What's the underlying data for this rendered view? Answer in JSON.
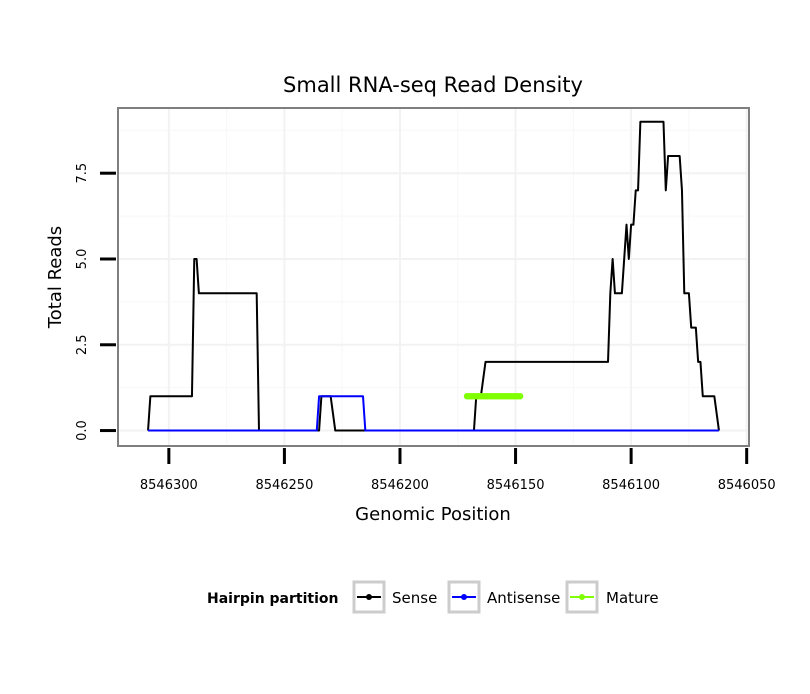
{
  "chart_data": {
    "type": "line",
    "title": "Small RNA-seq Read Density",
    "xlabel": "Genomic Position",
    "ylabel": "Total Reads",
    "xlim": [
      8546322,
      8546049
    ],
    "ylim": [
      -0.45,
      9.4
    ],
    "x_reversed": true,
    "xticks": [
      8546300,
      8546250,
      8546200,
      8546150,
      8546100,
      8546050
    ],
    "xtick_labels": [
      "8546300",
      "8546250",
      "8546200",
      "8546150",
      "8546100",
      "8546050"
    ],
    "yticks": [
      0,
      2.5,
      5,
      7.5
    ],
    "ytick_labels": [
      "0.0",
      "2.5",
      "5.0",
      "7.5"
    ],
    "legend": {
      "title": "Hairpin partition",
      "position": "bottom",
      "entries": [
        "Sense",
        "Antisense",
        "Mature"
      ]
    },
    "series": [
      {
        "name": "Sense",
        "color": "#000000",
        "points": [
          [
            8546309,
            0
          ],
          [
            8546308,
            1
          ],
          [
            8546290,
            1
          ],
          [
            8546289,
            5
          ],
          [
            8546288,
            5
          ],
          [
            8546287,
            4
          ],
          [
            8546262,
            4
          ],
          [
            8546261,
            0
          ],
          [
            8546235,
            0
          ],
          [
            8546234,
            1
          ],
          [
            8546230,
            1
          ],
          [
            8546228,
            0
          ],
          [
            8546168,
            0
          ],
          [
            8546167,
            1
          ],
          [
            8546165,
            1
          ],
          [
            8546163,
            2
          ],
          [
            8546145,
            2
          ],
          [
            8546144,
            2
          ],
          [
            8546136,
            2
          ],
          [
            8546134,
            2
          ],
          [
            8546133,
            2
          ],
          [
            8546132,
            2
          ],
          [
            8546131,
            2
          ],
          [
            8546130,
            2
          ],
          [
            8546128,
            2
          ],
          [
            8546121,
            2
          ],
          [
            8546120,
            2
          ],
          [
            8546110,
            2
          ],
          [
            8546109,
            4
          ],
          [
            8546108,
            5
          ],
          [
            8546107,
            4
          ],
          [
            8546104,
            4
          ],
          [
            8546103,
            5
          ],
          [
            8546102,
            6
          ],
          [
            8546101,
            5
          ],
          [
            8546100,
            6
          ],
          [
            8546099,
            6
          ],
          [
            8546098,
            7
          ],
          [
            8546097,
            7
          ],
          [
            8546096,
            9
          ],
          [
            8546086,
            9
          ],
          [
            8546085,
            7
          ],
          [
            8546084,
            8
          ],
          [
            8546079,
            8
          ],
          [
            8546078,
            7
          ],
          [
            8546077,
            4
          ],
          [
            8546075,
            4
          ],
          [
            8546074,
            3
          ],
          [
            8546072,
            3
          ],
          [
            8546071,
            2
          ],
          [
            8546070,
            2
          ],
          [
            8546069,
            1
          ],
          [
            8546064,
            1
          ],
          [
            8546062,
            0
          ]
        ]
      },
      {
        "name": "Antisense",
        "color": "#0000ff",
        "points": [
          [
            8546309,
            0
          ],
          [
            8546236,
            0
          ],
          [
            8546235,
            1
          ],
          [
            8546216,
            1
          ],
          [
            8546215,
            0
          ],
          [
            8546152,
            0
          ],
          [
            8546062,
            0
          ]
        ]
      },
      {
        "name": "Mature",
        "color": "#80ff00",
        "points": [
          [
            8546171,
            1
          ],
          [
            8546170,
            1
          ],
          [
            8546169,
            1
          ],
          [
            8546168,
            1
          ],
          [
            8546167,
            1
          ],
          [
            8546166,
            1
          ],
          [
            8546165,
            1
          ],
          [
            8546164,
            1
          ],
          [
            8546163,
            1
          ],
          [
            8546162,
            1
          ],
          [
            8546161,
            1
          ],
          [
            8546160,
            1
          ],
          [
            8546159,
            1
          ],
          [
            8546158,
            1
          ],
          [
            8546157,
            1
          ],
          [
            8546156,
            1
          ],
          [
            8546155,
            1
          ],
          [
            8546154,
            1
          ],
          [
            8546153,
            1
          ],
          [
            8546152,
            1
          ],
          [
            8546151,
            1
          ],
          [
            8546150,
            1
          ],
          [
            8546149,
            1
          ],
          [
            8546148,
            1
          ]
        ]
      }
    ]
  }
}
